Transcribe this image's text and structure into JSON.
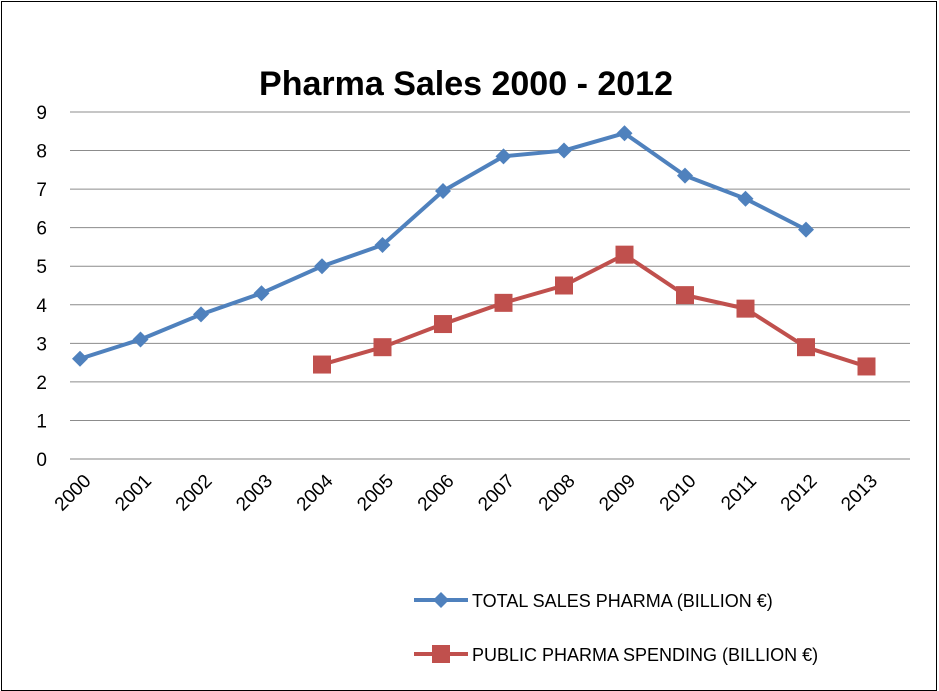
{
  "chart_data": {
    "type": "line",
    "title": "Pharma Sales 2000 - 2012",
    "categories": [
      "2000",
      "2001",
      "2002",
      "2003",
      "2004",
      "2005",
      "2006",
      "2007",
      "2008",
      "2009",
      "2010",
      "2011",
      "2012",
      "2013"
    ],
    "ylim": [
      0,
      9
    ],
    "yticks": [
      "0",
      "1",
      "2",
      "3",
      "4",
      "5",
      "6",
      "7",
      "8",
      "9"
    ],
    "grid": true,
    "legend_position": "bottom-right",
    "series": [
      {
        "name": "TOTAL SALES PHARMA (BILLION €)",
        "color": "#4F81BD",
        "marker": "diamond",
        "values": [
          2.6,
          3.1,
          3.75,
          4.3,
          5.0,
          5.55,
          6.95,
          7.85,
          8.0,
          8.45,
          7.35,
          6.75,
          5.95,
          null
        ]
      },
      {
        "name": "PUBLIC PHARMA SPENDING (BILLION €)",
        "color": "#C0504D",
        "marker": "square",
        "values": [
          null,
          null,
          null,
          null,
          2.45,
          2.9,
          3.5,
          4.05,
          4.5,
          5.3,
          4.25,
          3.9,
          2.9,
          2.4
        ]
      }
    ]
  }
}
